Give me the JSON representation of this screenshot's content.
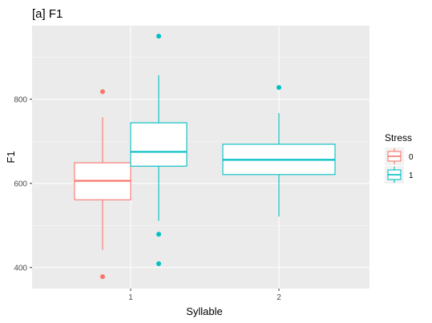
{
  "chart_data": {
    "type": "boxplot",
    "title": "[a] F1",
    "xlabel": "Syllable",
    "ylabel": "F1",
    "categories": [
      "1",
      "2"
    ],
    "yticks": [
      400,
      600,
      800
    ],
    "ylim": [
      350,
      975
    ],
    "grid": true,
    "legend": {
      "title": "Stress",
      "placement": "right",
      "entries": [
        {
          "label": "0",
          "color": "#F8766D"
        },
        {
          "label": "1",
          "color": "#00BFC4"
        }
      ]
    },
    "boxes": [
      {
        "category": "1",
        "stress": "0",
        "color": "#F8766D",
        "lower_whisker": 442,
        "q1": 561,
        "median": 606,
        "q3": 649,
        "upper_whisker": 757,
        "outliers": [
          818,
          378
        ]
      },
      {
        "category": "1",
        "stress": "1",
        "color": "#00BFC4",
        "lower_whisker": 511,
        "q1": 641,
        "median": 675,
        "q3": 744,
        "upper_whisker": 857,
        "outliers": [
          950,
          479,
          409
        ]
      },
      {
        "category": "2",
        "stress": "1",
        "color": "#00BFC4",
        "lower_whisker": 521,
        "q1": 621,
        "median": 656,
        "q3": 693,
        "upper_whisker": 767,
        "outliers": [
          828
        ]
      }
    ]
  }
}
